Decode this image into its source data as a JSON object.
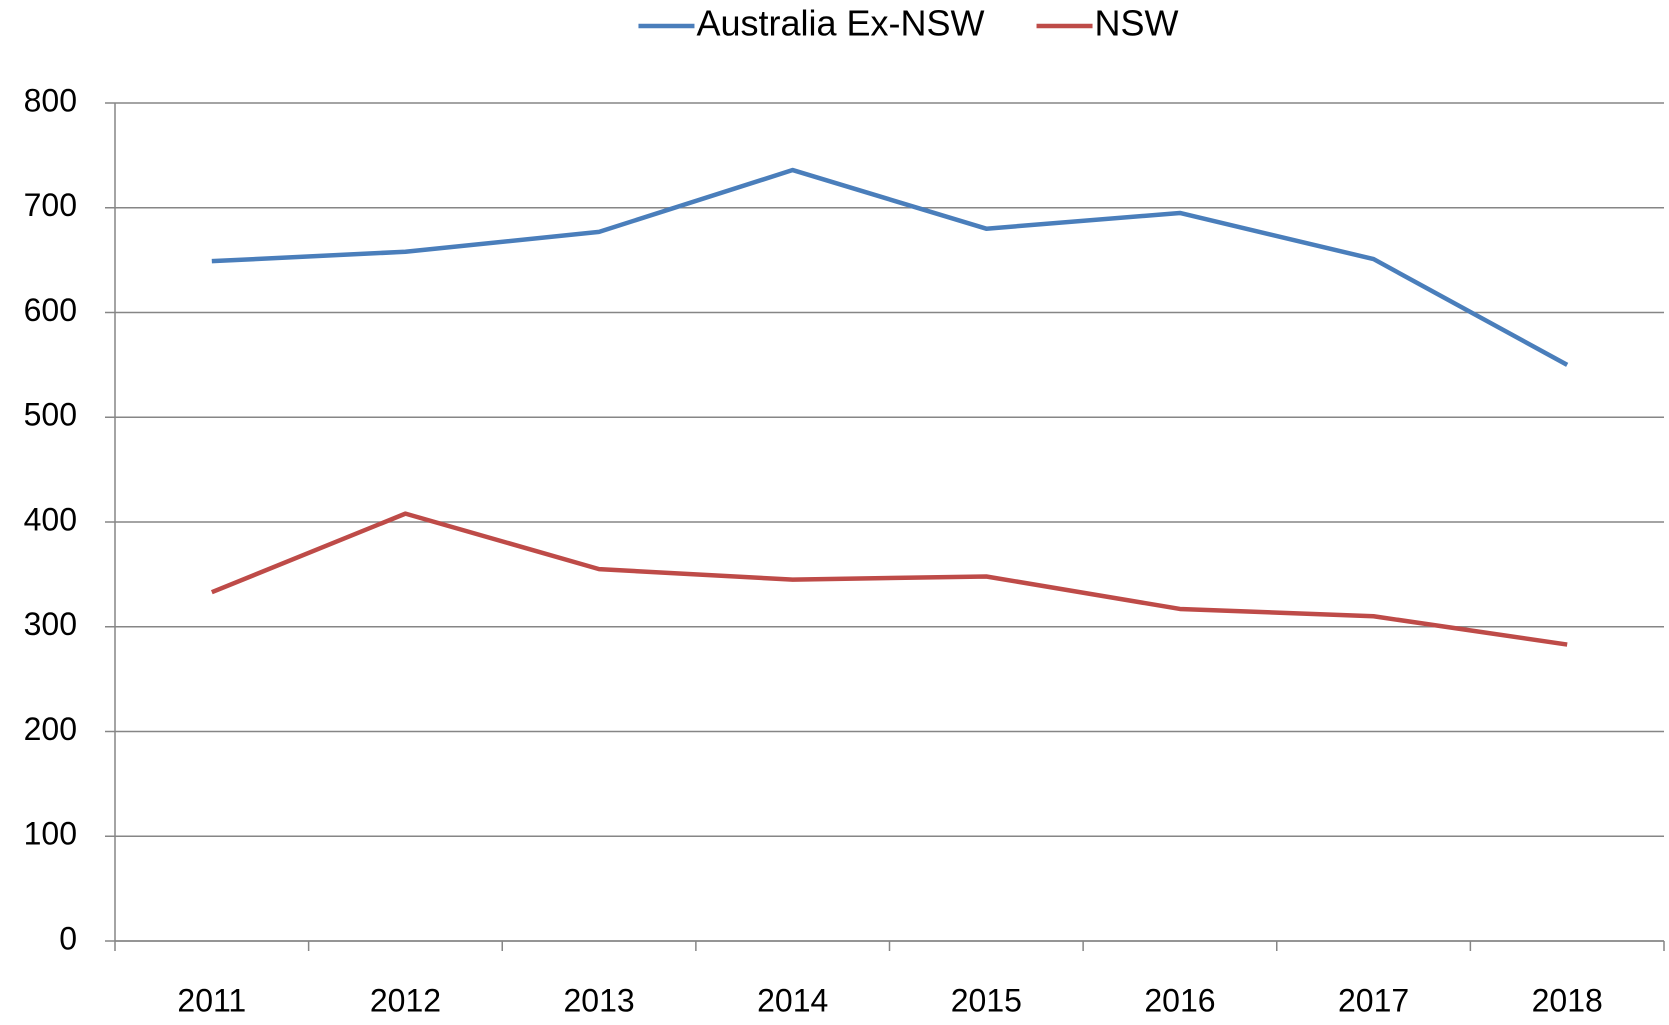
{
  "chart_data": {
    "type": "line",
    "categories": [
      "2011",
      "2012",
      "2013",
      "2014",
      "2015",
      "2016",
      "2017",
      "2018"
    ],
    "series": [
      {
        "name": "Australia Ex-NSW",
        "color": "#4a7ebb",
        "values": [
          649,
          658,
          677,
          736,
          680,
          695,
          651,
          550
        ]
      },
      {
        "name": "NSW",
        "color": "#be4b48",
        "values": [
          333,
          408,
          355,
          345,
          348,
          317,
          310,
          283
        ]
      }
    ],
    "ylim": [
      0,
      800
    ],
    "yticks": [
      0,
      100,
      200,
      300,
      400,
      500,
      600,
      700,
      800
    ],
    "grid": true,
    "legend": "top"
  }
}
